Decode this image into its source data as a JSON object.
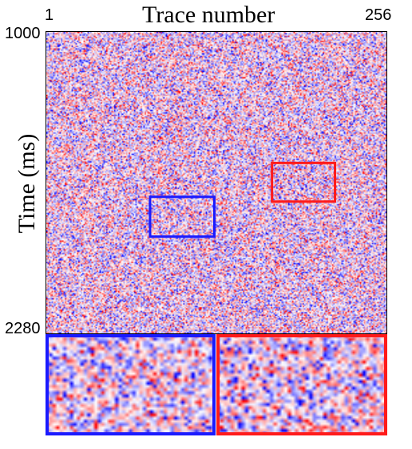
{
  "chart_data": {
    "type": "heatmap",
    "title": "Trace number",
    "xlabel": "",
    "ylabel": "Time (ms)",
    "x_tick_labels": [
      "1",
      "256"
    ],
    "y_tick_labels": [
      "1000",
      "2280"
    ],
    "xlim": [
      1,
      256
    ],
    "ylim": [
      1000,
      2280
    ],
    "colormap": [
      "#0000ff",
      "#ffffff",
      "#ff0000"
    ],
    "grid": false,
    "highlight_regions": [
      {
        "name": "blue",
        "color": "#1a1aff",
        "trace_range": [
          79,
          127
        ],
        "time_range": [
          1700,
          1868
        ]
      },
      {
        "name": "red",
        "color": "#ff1a1a",
        "trace_range": [
          170,
          217
        ],
        "time_range": [
          1557,
          1720
        ]
      }
    ],
    "zoom_panels": [
      "blue",
      "red"
    ]
  }
}
